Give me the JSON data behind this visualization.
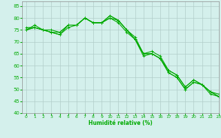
{
  "xlabel": "Humidité relative (%)",
  "background_color": "#d4f0ec",
  "grid_color": "#b0ccc8",
  "line_color": "#00aa00",
  "xlim": [
    -0.5,
    23
  ],
  "ylim": [
    40,
    87
  ],
  "yticks": [
    40,
    45,
    50,
    55,
    60,
    65,
    70,
    75,
    80,
    85
  ],
  "xticks": [
    0,
    1,
    2,
    3,
    4,
    5,
    6,
    7,
    8,
    9,
    10,
    11,
    12,
    13,
    14,
    15,
    16,
    17,
    18,
    19,
    20,
    21,
    22,
    23
  ],
  "series": [
    [
      75,
      77,
      75,
      74,
      73,
      77,
      77,
      80,
      78,
      78,
      81,
      79,
      75,
      72,
      65,
      66,
      64,
      58,
      56,
      51,
      54,
      52,
      49,
      48
    ],
    [
      76,
      76,
      75,
      74,
      74,
      77,
      77,
      80,
      78,
      78,
      80,
      79,
      75,
      71,
      65,
      65,
      63,
      57,
      55,
      50,
      53,
      52,
      49,
      47
    ],
    [
      75,
      76,
      75,
      75,
      74,
      77,
      77,
      80,
      78,
      78,
      81,
      79,
      75,
      71,
      65,
      65,
      63,
      58,
      56,
      51,
      54,
      52,
      49,
      47
    ],
    [
      75,
      76,
      75,
      74,
      73,
      76,
      77,
      80,
      78,
      78,
      80,
      78,
      74,
      71,
      64,
      65,
      63,
      57,
      55,
      50,
      53,
      52,
      48,
      47
    ]
  ]
}
